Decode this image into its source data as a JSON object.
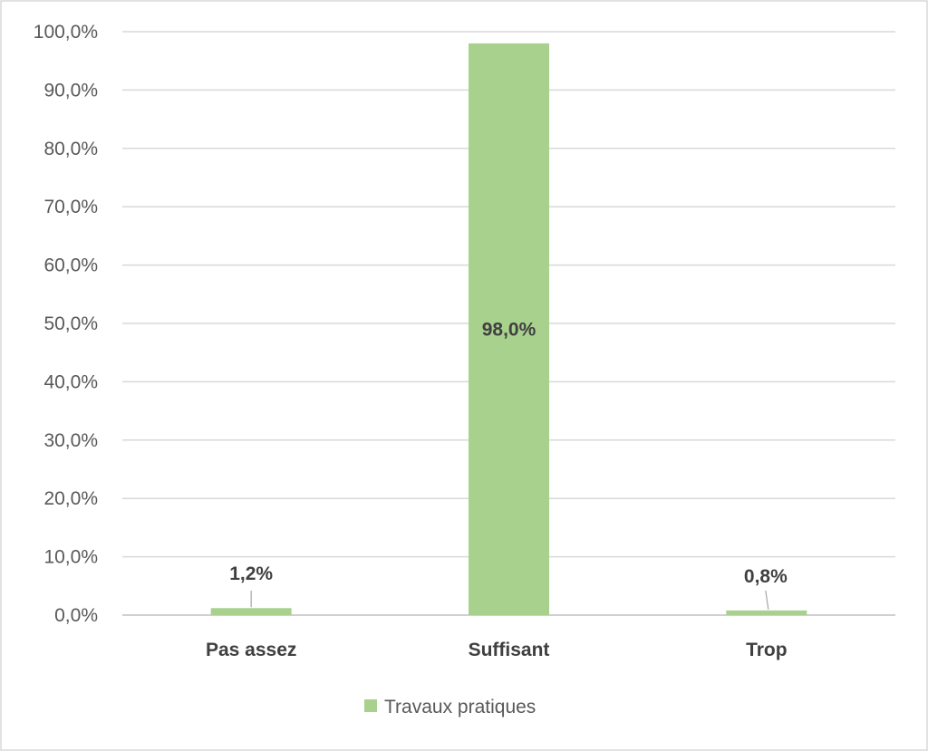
{
  "chart_data": {
    "type": "bar",
    "title": "",
    "xlabel": "",
    "ylabel": "",
    "categories": [
      "Pas assez",
      "Suffisant",
      "Trop"
    ],
    "series": [
      {
        "name": "Travaux pratiques",
        "values": [
          1.2,
          98.0,
          0.8
        ],
        "labels": [
          "1,2%",
          "98,0%",
          "0,8%"
        ],
        "color": "#a9d18e"
      }
    ],
    "ylim": [
      0,
      100
    ],
    "yticks": [
      0,
      10,
      20,
      30,
      40,
      50,
      60,
      70,
      80,
      90,
      100
    ],
    "ytick_labels": [
      "0,0%",
      "10,0%",
      "20,0%",
      "30,0%",
      "40,0%",
      "50,0%",
      "60,0%",
      "70,0%",
      "80,0%",
      "90,0%",
      "100,0%"
    ],
    "grid": true,
    "legend_position": "bottom"
  }
}
